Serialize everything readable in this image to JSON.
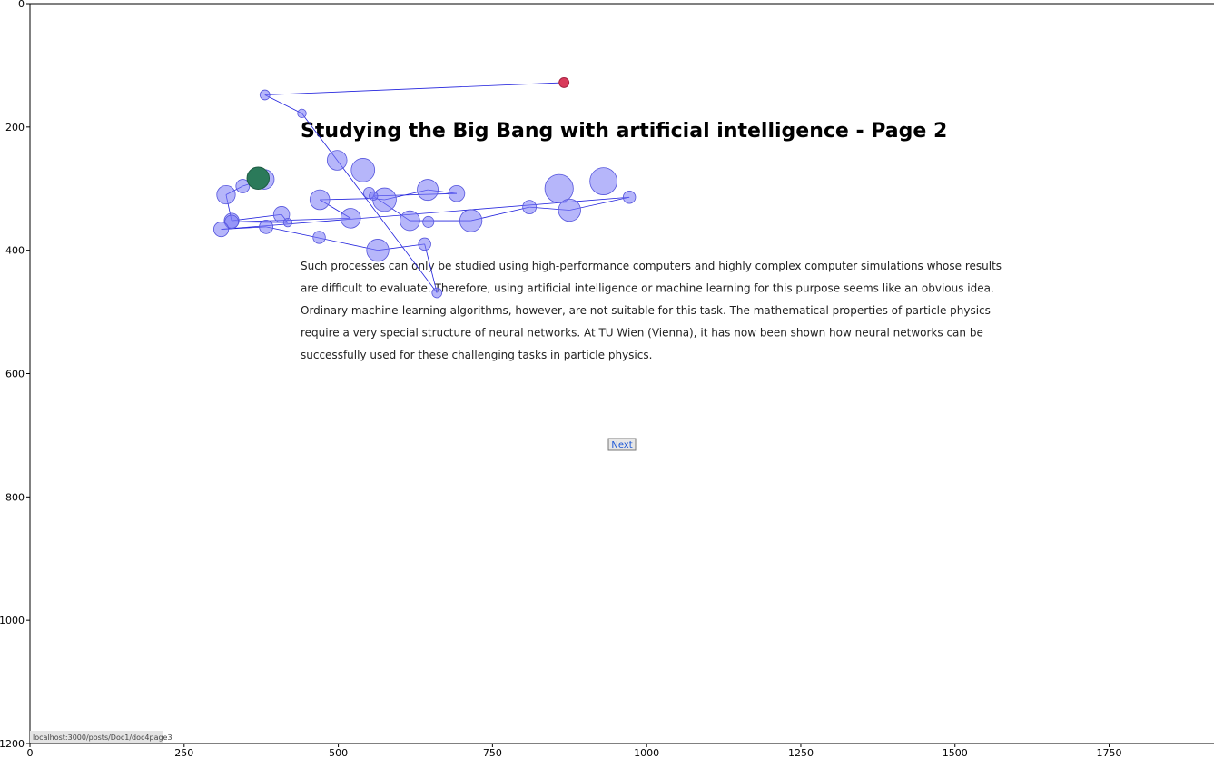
{
  "chart_data": {
    "type": "scatter",
    "title": "",
    "xlabel": "",
    "ylabel": "",
    "xlim": [
      0,
      1920
    ],
    "ylim": [
      1200,
      0
    ],
    "x_ticks": [
      0,
      250,
      500,
      750,
      1000,
      1250,
      1500,
      1750
    ],
    "y_ticks": [
      0,
      200,
      400,
      600,
      800,
      1000,
      1200
    ],
    "grid": false,
    "stimulus": {
      "title": "Studying the Big Bang with artificial intelligence - Page 2",
      "paragraph_lines": [
        "Such processes can only be studied using high-performance computers and highly complex computer simulations whose results",
        "are difficult to evaluate. Therefore, using artificial intelligence or machine learning for this purpose seems like an obvious idea.",
        "Ordinary machine-learning algorithms, however, are not suitable for this task. The mathematical properties of particle physics",
        "require a very special structure of neural networks. At TU Wien (Vienna), it has now been shown how neural networks can be",
        "successfully used for these challenging tasks in particle physics."
      ],
      "next_label": "Next",
      "status_url": "localhost:3000/posts/Doc1/doc4page3"
    },
    "fixations": [
      {
        "x": 370,
        "y": 283,
        "r": 18,
        "kind": "start"
      },
      {
        "x": 380,
        "y": 285,
        "r": 16
      },
      {
        "x": 345,
        "y": 296,
        "r": 11
      },
      {
        "x": 318,
        "y": 310,
        "r": 15
      },
      {
        "x": 327,
        "y": 352,
        "r": 12
      },
      {
        "x": 408,
        "y": 342,
        "r": 13
      },
      {
        "x": 418,
        "y": 355,
        "r": 7
      },
      {
        "x": 327,
        "y": 354,
        "r": 11
      },
      {
        "x": 520,
        "y": 348,
        "r": 16
      },
      {
        "x": 470,
        "y": 318,
        "r": 16
      },
      {
        "x": 550,
        "y": 307,
        "r": 9
      },
      {
        "x": 575,
        "y": 318,
        "r": 19
      },
      {
        "x": 645,
        "y": 302,
        "r": 17
      },
      {
        "x": 692,
        "y": 308,
        "r": 13
      },
      {
        "x": 557,
        "y": 312,
        "r": 7
      },
      {
        "x": 616,
        "y": 352,
        "r": 16
      },
      {
        "x": 646,
        "y": 354,
        "r": 9
      },
      {
        "x": 715,
        "y": 352,
        "r": 18
      },
      {
        "x": 810,
        "y": 330,
        "r": 11
      },
      {
        "x": 858,
        "y": 300,
        "r": 23
      },
      {
        "x": 930,
        "y": 288,
        "r": 22
      },
      {
        "x": 972,
        "y": 314,
        "r": 10
      },
      {
        "x": 875,
        "y": 335,
        "r": 18
      },
      {
        "x": 498,
        "y": 254,
        "r": 16
      },
      {
        "x": 540,
        "y": 270,
        "r": 19
      },
      {
        "x": 310,
        "y": 366,
        "r": 12
      },
      {
        "x": 383,
        "y": 362,
        "r": 11
      },
      {
        "x": 469,
        "y": 379,
        "r": 10
      },
      {
        "x": 564,
        "y": 400,
        "r": 18
      },
      {
        "x": 640,
        "y": 390,
        "r": 10
      },
      {
        "x": 660,
        "y": 469,
        "r": 8
      },
      {
        "x": 441,
        "y": 178,
        "r": 7
      },
      {
        "x": 381,
        "y": 148,
        "r": 8
      },
      {
        "x": 866,
        "y": 128,
        "r": 8,
        "kind": "end"
      }
    ],
    "scanpath": [
      [
        370,
        283
      ],
      [
        380,
        285
      ],
      [
        345,
        296
      ],
      [
        318,
        310
      ],
      [
        327,
        352
      ],
      [
        408,
        342
      ],
      [
        418,
        355
      ],
      [
        327,
        354
      ],
      [
        520,
        348
      ],
      [
        470,
        318
      ],
      [
        557,
        316
      ],
      [
        575,
        318
      ],
      [
        645,
        302
      ],
      [
        692,
        308
      ],
      [
        557,
        312
      ],
      [
        616,
        352
      ],
      [
        715,
        352
      ],
      [
        810,
        330
      ],
      [
        875,
        335
      ],
      [
        972,
        314
      ],
      [
        310,
        366
      ],
      [
        383,
        362
      ],
      [
        564,
        400
      ],
      [
        640,
        390
      ],
      [
        660,
        469
      ],
      [
        441,
        178
      ],
      [
        381,
        148
      ],
      [
        866,
        128
      ]
    ]
  }
}
